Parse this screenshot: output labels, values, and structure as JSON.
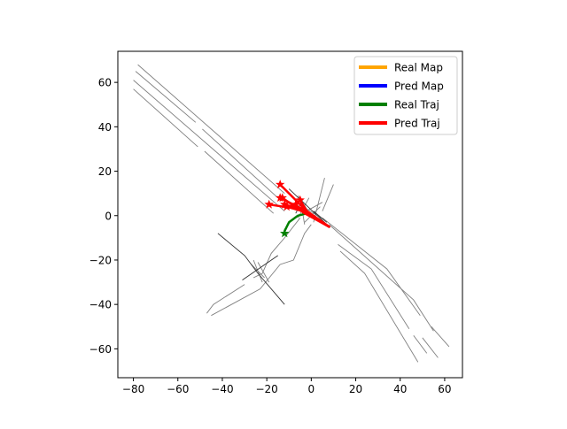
{
  "chart_data": {
    "type": "line",
    "title": "",
    "xlabel": "",
    "ylabel": "",
    "xlim": [
      -87,
      68
    ],
    "ylim": [
      -73,
      74
    ],
    "grid": false,
    "x_ticks": [
      -80,
      -60,
      -40,
      -20,
      0,
      20,
      40,
      60
    ],
    "y_ticks": [
      -60,
      -40,
      -20,
      0,
      20,
      40,
      60
    ],
    "x_tick_labels": [
      "−80",
      "−60",
      "−40",
      "−20",
      "0",
      "20",
      "40",
      "60"
    ],
    "y_tick_labels": [
      "−60",
      "−40",
      "−20",
      "0",
      "20",
      "40",
      "60"
    ],
    "legend": {
      "position": "top-right",
      "entries": [
        {
          "label": "Real Map",
          "color": "#ffa500"
        },
        {
          "label": "Pred Map",
          "color": "#0000ff"
        },
        {
          "label": "Real Traj",
          "color": "#008000"
        },
        {
          "label": "Pred Traj",
          "color": "#ff0000"
        }
      ]
    },
    "map_lines": [
      {
        "color": "#808080",
        "points": [
          [
            -78,
            68
          ],
          [
            -12,
            10
          ]
        ]
      },
      {
        "color": "#808080",
        "points": [
          [
            -79,
            65
          ],
          [
            -52,
            42
          ]
        ]
      },
      {
        "color": "#808080",
        "points": [
          [
            -49,
            39
          ],
          [
            -15,
            8
          ]
        ]
      },
      {
        "color": "#808080",
        "points": [
          [
            -80,
            61
          ],
          [
            -12,
            2
          ]
        ]
      },
      {
        "color": "#808080",
        "points": [
          [
            -80,
            57
          ],
          [
            -51,
            31
          ]
        ]
      },
      {
        "color": "#808080",
        "points": [
          [
            -48,
            29
          ],
          [
            -17,
            1
          ]
        ]
      },
      {
        "color": "#808080",
        "points": [
          [
            5,
            -1
          ],
          [
            34,
            -24
          ],
          [
            49,
            -45
          ]
        ]
      },
      {
        "color": "#808080",
        "points": [
          [
            8,
            -4
          ],
          [
            46,
            -38
          ],
          [
            55,
            -52
          ]
        ]
      },
      {
        "color": "#808080",
        "points": [
          [
            12,
            -13
          ],
          [
            27,
            -24
          ],
          [
            44,
            -51
          ]
        ]
      },
      {
        "color": "#808080",
        "points": [
          [
            46,
            -54
          ],
          [
            52,
            -62
          ]
        ]
      },
      {
        "color": "#808080",
        "points": [
          [
            13,
            -16
          ],
          [
            24,
            -26
          ],
          [
            48,
            -66
          ]
        ]
      },
      {
        "color": "#808080",
        "points": [
          [
            50,
            -55
          ],
          [
            57,
            -64
          ]
        ]
      },
      {
        "color": "#808080",
        "points": [
          [
            54,
            -50
          ],
          [
            62,
            -59
          ]
        ]
      },
      {
        "color": "#808080",
        "points": [
          [
            -47,
            -44
          ],
          [
            -44,
            -40
          ],
          [
            -30,
            -31
          ]
        ]
      },
      {
        "color": "#808080",
        "points": [
          [
            -26,
            -28
          ],
          [
            -22,
            -26
          ],
          [
            -18,
            -17
          ],
          [
            -12,
            -10
          ],
          [
            -5,
            -1
          ]
        ]
      },
      {
        "color": "#808080",
        "points": [
          [
            -45,
            -45
          ],
          [
            -23,
            -33
          ],
          [
            -14,
            -22
          ],
          [
            -8,
            -20
          ],
          [
            -3,
            -8
          ],
          [
            0,
            -4
          ]
        ]
      },
      {
        "color": "#808080",
        "points": [
          [
            -6,
            9
          ],
          [
            -2,
            3
          ],
          [
            6,
            -2
          ]
        ]
      },
      {
        "color": "#808080",
        "points": [
          [
            -4,
            1
          ],
          [
            5,
            6
          ]
        ]
      },
      {
        "color": "#808080",
        "points": [
          [
            5,
            2
          ],
          [
            10,
            14
          ]
        ]
      },
      {
        "color": "#808080",
        "points": [
          [
            1,
            -3
          ],
          [
            6,
            17
          ]
        ]
      },
      {
        "color": "#808080",
        "points": [
          [
            -6,
            -1
          ],
          [
            -1,
            8
          ]
        ]
      },
      {
        "color": "#808080",
        "points": [
          [
            -3,
            -3
          ],
          [
            4,
            4
          ]
        ]
      },
      {
        "color": "#808080",
        "points": [
          [
            -5,
            8
          ],
          [
            -3,
            -4
          ]
        ]
      },
      {
        "color": "#808080",
        "points": [
          [
            -26,
            -20
          ],
          [
            -22,
            -30
          ]
        ]
      },
      {
        "color": "#808080",
        "points": [
          [
            -27,
            -22
          ],
          [
            -21,
            -28
          ]
        ]
      },
      {
        "color": "#808080",
        "points": [
          [
            -24,
            -21
          ],
          [
            -19,
            -30
          ]
        ]
      },
      {
        "color": "#303030",
        "points": [
          [
            -42,
            -8
          ],
          [
            -30,
            -18
          ],
          [
            -24,
            -26
          ],
          [
            -12,
            -40
          ]
        ]
      },
      {
        "color": "#303030",
        "points": [
          [
            -31,
            -29
          ],
          [
            -15,
            -18
          ]
        ]
      },
      {
        "color": "#303030",
        "points": [
          [
            -10,
            12
          ],
          [
            7,
            -4
          ]
        ]
      },
      {
        "color": "#303030",
        "points": [
          [
            -7,
            1
          ],
          [
            -4,
            7
          ]
        ]
      },
      {
        "color": "#303030",
        "points": [
          [
            1,
            2
          ],
          [
            7,
            -3
          ]
        ]
      }
    ],
    "series": [
      {
        "name": "Real Traj",
        "color": "#008000",
        "paths": [
          [
            [
              -2,
              1
            ],
            [
              -6,
              0
            ],
            [
              -10,
              -3
            ],
            [
              -12,
              -7
            ]
          ]
        ],
        "markers": [
          [
            -12,
            -8
          ]
        ]
      },
      {
        "name": "Pred Traj",
        "color": "#ff0000",
        "paths": [
          [
            [
              8,
              -5
            ],
            [
              -2,
              2
            ],
            [
              -14,
              14
            ]
          ],
          [
            [
              8,
              -5
            ],
            [
              -3,
              1
            ],
            [
              -13,
              8
            ]
          ],
          [
            [
              8,
              -5
            ],
            [
              -4,
              2
            ],
            [
              -7,
              5
            ]
          ],
          [
            [
              8,
              -5
            ],
            [
              -5,
              3
            ],
            [
              -12,
              5
            ]
          ],
          [
            [
              8,
              -5
            ],
            [
              -6,
              3
            ],
            [
              -19,
              5
            ]
          ],
          [
            [
              8,
              -5
            ],
            [
              -2,
              2
            ],
            [
              -14,
              8
            ]
          ],
          [
            [
              8,
              -5
            ],
            [
              -4,
              2
            ],
            [
              -11,
              4
            ]
          ],
          [
            [
              8,
              -5
            ],
            [
              -2,
              2
            ],
            [
              -5,
              7
            ]
          ]
        ],
        "markers": [
          [
            -14,
            14
          ],
          [
            -13,
            8
          ],
          [
            -7,
            5
          ],
          [
            -12,
            5
          ],
          [
            -19,
            5
          ],
          [
            -14,
            8
          ],
          [
            -11,
            4
          ],
          [
            -5,
            7
          ]
        ]
      }
    ]
  }
}
